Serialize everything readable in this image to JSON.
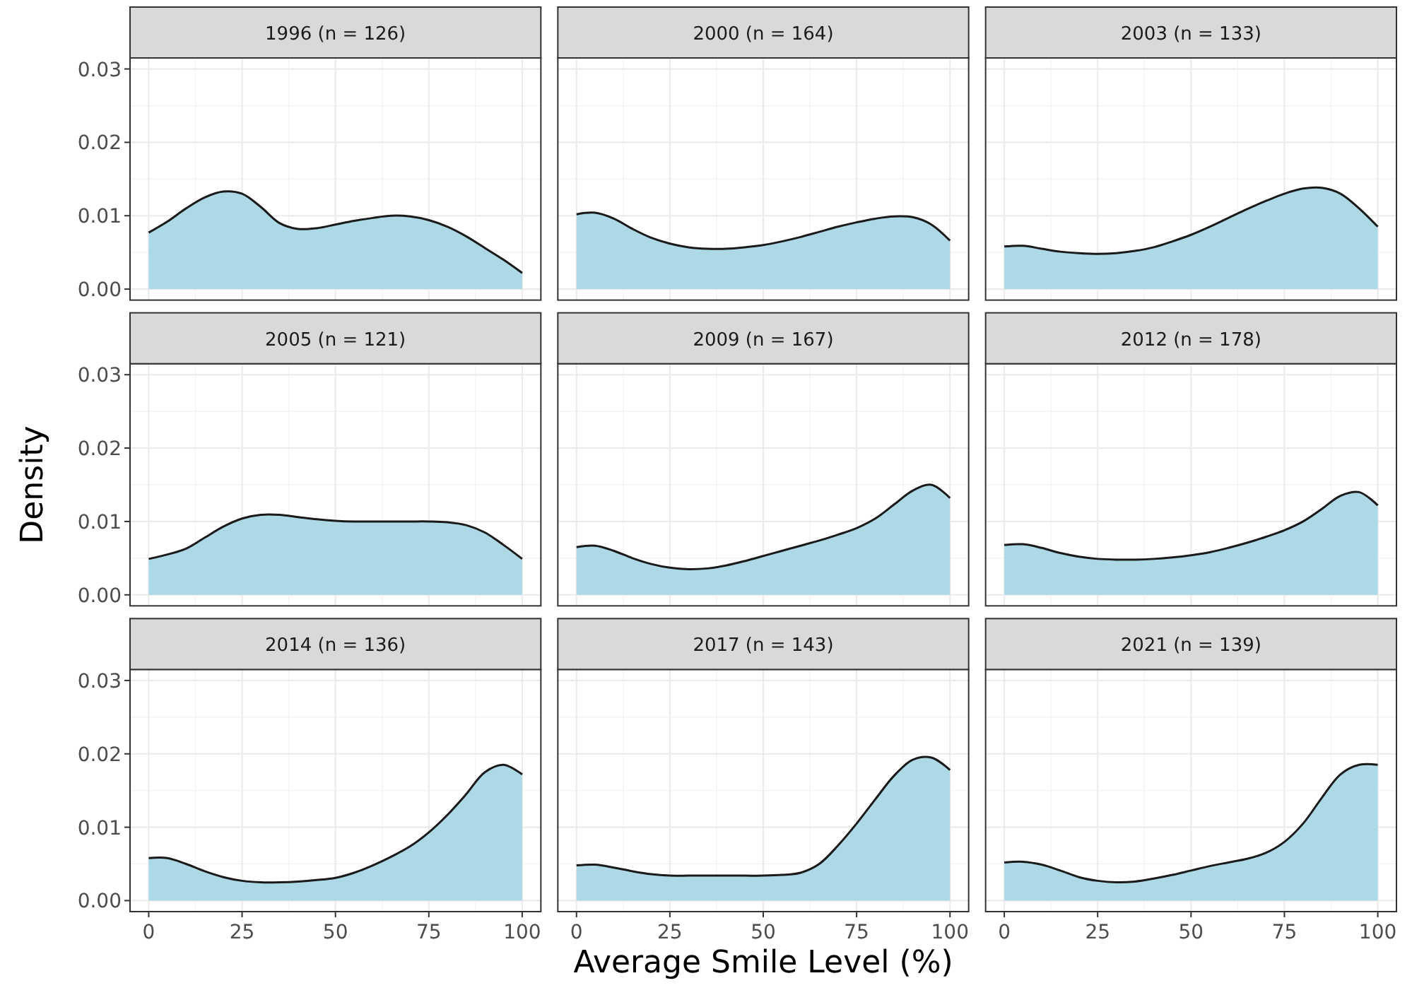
{
  "chart_data": [
    {
      "type": "area",
      "title": "1996 (n = 126)",
      "tick_labels": "y",
      "x": [
        0,
        5,
        10,
        15,
        20,
        25,
        30,
        35,
        40,
        45,
        50,
        55,
        60,
        65,
        70,
        75,
        80,
        85,
        90,
        95,
        100
      ],
      "series": [
        {
          "color": "#add8e6",
          "values": [
            0.0077,
            0.0092,
            0.011,
            0.0125,
            0.0133,
            0.013,
            0.0112,
            0.009,
            0.0082,
            0.0083,
            0.0088,
            0.0093,
            0.0097,
            0.01,
            0.0099,
            0.0094,
            0.0085,
            0.0072,
            0.0056,
            0.004,
            0.0022
          ]
        }
      ],
      "xlim": [
        -5,
        105
      ],
      "ylim": [
        -0.0015,
        0.0315
      ],
      "xticks": [
        0,
        25,
        50,
        75,
        100
      ],
      "yticks": [
        {
          "value": 0,
          "label": "0.00"
        },
        {
          "value": 0.01,
          "label": "0.01"
        },
        {
          "value": 0.02,
          "label": "0.02"
        },
        {
          "value": 0.03,
          "label": "0.03"
        }
      ],
      "grid": true
    },
    {
      "type": "area",
      "title": "2000 (n = 164)",
      "tick_labels": false,
      "x": [
        0,
        5,
        10,
        15,
        20,
        25,
        30,
        35,
        40,
        45,
        50,
        55,
        60,
        65,
        70,
        75,
        80,
        85,
        90,
        95,
        100
      ],
      "series": [
        {
          "color": "#add8e6",
          "values": [
            0.0102,
            0.0104,
            0.0096,
            0.0082,
            0.007,
            0.0062,
            0.0057,
            0.0055,
            0.0055,
            0.0057,
            0.006,
            0.0065,
            0.0071,
            0.0078,
            0.0085,
            0.0091,
            0.0096,
            0.0099,
            0.0098,
            0.0088,
            0.0066
          ]
        }
      ],
      "xlim": [
        -5,
        105
      ],
      "ylim": [
        -0.0015,
        0.0315
      ],
      "xticks": [
        0,
        25,
        50,
        75,
        100
      ],
      "yticks": [
        0,
        0.01,
        0.02,
        0.03
      ],
      "grid": true
    },
    {
      "type": "area",
      "title": "2003 (n = 133)",
      "tick_labels": false,
      "x": [
        0,
        5,
        10,
        15,
        20,
        25,
        30,
        35,
        40,
        45,
        50,
        55,
        60,
        65,
        70,
        75,
        80,
        85,
        90,
        95,
        100
      ],
      "series": [
        {
          "color": "#add8e6",
          "values": [
            0.0058,
            0.0059,
            0.0055,
            0.0051,
            0.0049,
            0.0048,
            0.0049,
            0.0052,
            0.0057,
            0.0065,
            0.0074,
            0.0085,
            0.0097,
            0.0109,
            0.012,
            0.013,
            0.0137,
            0.0138,
            0.013,
            0.011,
            0.0085
          ]
        }
      ],
      "xlim": [
        -5,
        105
      ],
      "ylim": [
        -0.0015,
        0.0315
      ],
      "xticks": [
        0,
        25,
        50,
        75,
        100
      ],
      "yticks": [
        0,
        0.01,
        0.02,
        0.03
      ],
      "grid": true
    },
    {
      "type": "area",
      "title": "2005 (n = 121)",
      "ylabel": "Density",
      "tick_labels": "y",
      "x": [
        0,
        5,
        10,
        15,
        20,
        25,
        30,
        35,
        40,
        45,
        50,
        55,
        60,
        65,
        70,
        75,
        80,
        85,
        90,
        95,
        100
      ],
      "series": [
        {
          "color": "#add8e6",
          "values": [
            0.0049,
            0.0055,
            0.0063,
            0.0078,
            0.0093,
            0.0104,
            0.0109,
            0.0109,
            0.0106,
            0.0103,
            0.0101,
            0.01,
            0.01,
            0.01,
            0.01,
            0.01,
            0.0099,
            0.0095,
            0.0085,
            0.0068,
            0.0049
          ]
        }
      ],
      "xlim": [
        -5,
        105
      ],
      "ylim": [
        -0.0015,
        0.0315
      ],
      "xticks": [
        0,
        25,
        50,
        75,
        100
      ],
      "yticks": [
        {
          "value": 0,
          "label": "0.00"
        },
        {
          "value": 0.01,
          "label": "0.01"
        },
        {
          "value": 0.02,
          "label": "0.02"
        },
        {
          "value": 0.03,
          "label": "0.03"
        }
      ],
      "grid": true
    },
    {
      "type": "area",
      "title": "2009 (n = 167)",
      "tick_labels": false,
      "x": [
        0,
        5,
        10,
        15,
        20,
        25,
        30,
        35,
        40,
        45,
        50,
        55,
        60,
        65,
        70,
        75,
        80,
        85,
        90,
        95,
        100
      ],
      "series": [
        {
          "color": "#add8e6",
          "values": [
            0.0065,
            0.0067,
            0.006,
            0.005,
            0.0042,
            0.0037,
            0.0035,
            0.0036,
            0.004,
            0.0046,
            0.0053,
            0.006,
            0.0067,
            0.0074,
            0.0082,
            0.0091,
            0.0104,
            0.0123,
            0.0142,
            0.015,
            0.0132
          ]
        }
      ],
      "xlim": [
        -5,
        105
      ],
      "ylim": [
        -0.0015,
        0.0315
      ],
      "xticks": [
        0,
        25,
        50,
        75,
        100
      ],
      "yticks": [
        0,
        0.01,
        0.02,
        0.03
      ],
      "grid": true
    },
    {
      "type": "area",
      "title": "2012 (n = 178)",
      "tick_labels": false,
      "x": [
        0,
        5,
        10,
        15,
        20,
        25,
        30,
        35,
        40,
        45,
        50,
        55,
        60,
        65,
        70,
        75,
        80,
        85,
        90,
        95,
        100
      ],
      "series": [
        {
          "color": "#add8e6",
          "values": [
            0.0068,
            0.0069,
            0.0064,
            0.0057,
            0.0052,
            0.0049,
            0.0048,
            0.0048,
            0.0049,
            0.0051,
            0.0054,
            0.0058,
            0.0064,
            0.0071,
            0.0079,
            0.0088,
            0.01,
            0.0117,
            0.0135,
            0.014,
            0.0122
          ]
        }
      ],
      "xlim": [
        -5,
        105
      ],
      "ylim": [
        -0.0015,
        0.0315
      ],
      "xticks": [
        0,
        25,
        50,
        75,
        100
      ],
      "yticks": [
        0,
        0.01,
        0.02,
        0.03
      ],
      "grid": true
    },
    {
      "type": "area",
      "title": "2014 (n = 136)",
      "x": [
        0,
        5,
        10,
        15,
        20,
        25,
        30,
        35,
        40,
        45,
        50,
        55,
        60,
        65,
        70,
        75,
        80,
        85,
        90,
        95,
        100
      ],
      "series": [
        {
          "color": "#add8e6",
          "values": [
            0.0058,
            0.0058,
            0.005,
            0.004,
            0.0032,
            0.0027,
            0.0025,
            0.0025,
            0.0026,
            0.0028,
            0.0031,
            0.0038,
            0.0048,
            0.006,
            0.0074,
            0.0093,
            0.0117,
            0.0145,
            0.0175,
            0.0185,
            0.0172
          ]
        }
      ],
      "xlim": [
        -5,
        105
      ],
      "ylim": [
        -0.0015,
        0.0315
      ],
      "xticks": [
        0,
        25,
        50,
        75,
        100
      ],
      "yticks": [
        {
          "value": 0,
          "label": "0.00"
        },
        {
          "value": 0.01,
          "label": "0.01"
        },
        {
          "value": 0.02,
          "label": "0.02"
        },
        {
          "value": 0.03,
          "label": "0.03"
        }
      ],
      "grid": true
    },
    {
      "type": "area",
      "title": "2017 (n = 143)",
      "xlabel": "Average Smile Level (%)",
      "tick_labels": "x",
      "x": [
        0,
        5,
        10,
        15,
        20,
        25,
        30,
        35,
        40,
        45,
        50,
        55,
        60,
        65,
        70,
        75,
        80,
        85,
        90,
        95,
        100
      ],
      "series": [
        {
          "color": "#add8e6",
          "values": [
            0.0048,
            0.0049,
            0.0045,
            0.004,
            0.0036,
            0.0034,
            0.0034,
            0.0034,
            0.0034,
            0.0034,
            0.0034,
            0.0035,
            0.0038,
            0.005,
            0.0075,
            0.0105,
            0.0138,
            0.017,
            0.0192,
            0.0195,
            0.0178
          ]
        }
      ],
      "xlim": [
        -5,
        105
      ],
      "ylim": [
        -0.0015,
        0.0315
      ],
      "xticks": [
        0,
        25,
        50,
        75,
        100
      ],
      "yticks": [
        0,
        0.01,
        0.02,
        0.03
      ],
      "grid": true
    },
    {
      "type": "area",
      "title": "2021 (n = 139)",
      "tick_labels": "x",
      "x": [
        0,
        5,
        10,
        15,
        20,
        25,
        30,
        35,
        40,
        45,
        50,
        55,
        60,
        65,
        70,
        75,
        80,
        85,
        90,
        95,
        100
      ],
      "series": [
        {
          "color": "#add8e6",
          "values": [
            0.0052,
            0.0053,
            0.0049,
            0.0041,
            0.0032,
            0.0027,
            0.0025,
            0.0026,
            0.003,
            0.0035,
            0.0041,
            0.0047,
            0.0052,
            0.0057,
            0.0065,
            0.008,
            0.0105,
            0.014,
            0.0172,
            0.0185,
            0.0185
          ]
        }
      ],
      "xlim": [
        -5,
        105
      ],
      "ylim": [
        -0.0015,
        0.0315
      ],
      "xticks": [
        0,
        25,
        50,
        75,
        100
      ],
      "yticks": [
        0,
        0.01,
        0.02,
        0.03
      ],
      "grid": true
    }
  ]
}
